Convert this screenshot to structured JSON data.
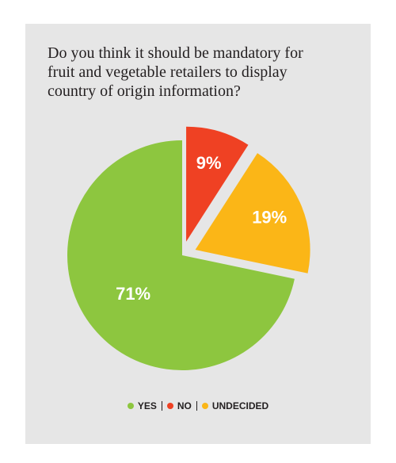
{
  "chart_data": {
    "type": "pie",
    "title": "Do you think it should be mandatory for\nfruit and vegetable retailers to display\ncountry of origin information?",
    "categories": [
      "YES",
      "NO",
      "UNDECIDED"
    ],
    "values": [
      71,
      9,
      19
    ],
    "value_labels": [
      "71%",
      "9%",
      "19%"
    ],
    "colors": [
      "#8dc63f",
      "#ef4123",
      "#fbb617"
    ],
    "explode": [
      false,
      true,
      true
    ],
    "legend": "bottom"
  }
}
